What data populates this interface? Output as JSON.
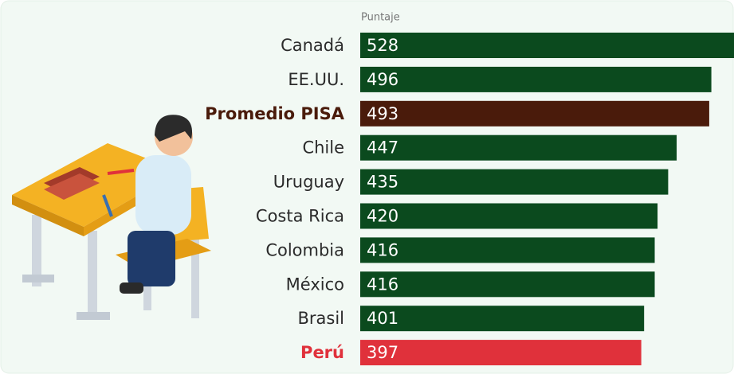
{
  "chart_data": {
    "type": "bar",
    "orientation": "horizontal",
    "xlabel": "Puntaje",
    "categories": [
      "Canadá",
      "EE.UU.",
      "Promedio PISA",
      "Chile",
      "Uruguay",
      "Costa Rica",
      "Colombia",
      "México",
      "Brasil",
      "Perú"
    ],
    "values": [
      528,
      496,
      493,
      447,
      435,
      420,
      416,
      416,
      401,
      397
    ],
    "colors": [
      "#0b4a1e",
      "#0b4a1e",
      "#4a1b0b",
      "#0b4a1e",
      "#0b4a1e",
      "#0b4a1e",
      "#0b4a1e",
      "#0b4a1e",
      "#0b4a1e",
      "#e0313b"
    ],
    "label_colors": [
      "#2b2b2b",
      "#2b2b2b",
      "#4a1b0b",
      "#2b2b2b",
      "#2b2b2b",
      "#2b2b2b",
      "#2b2b2b",
      "#2b2b2b",
      "#2b2b2b",
      "#e0313b"
    ],
    "bold_labels": [
      false,
      false,
      true,
      false,
      false,
      false,
      false,
      false,
      false,
      true
    ],
    "xlim": [
      0,
      528
    ]
  }
}
